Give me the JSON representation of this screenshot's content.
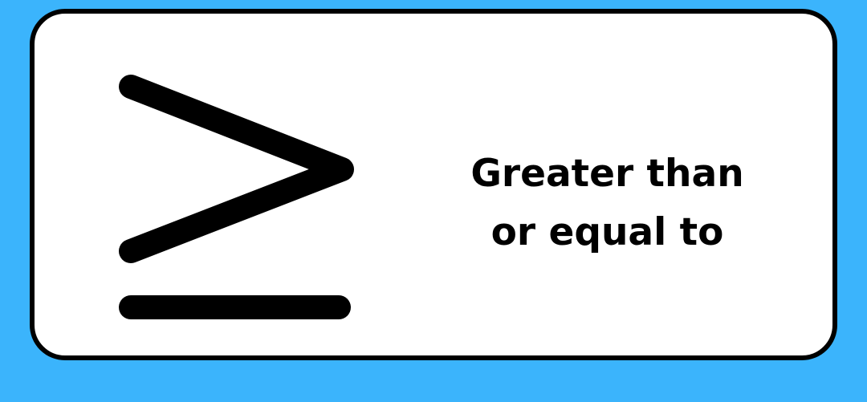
{
  "colors": {
    "background": "#3bb4fc",
    "card": "#ffffff",
    "ink": "#000000"
  },
  "symbol": {
    "icon": "greater-than-or-equal-icon"
  },
  "caption": {
    "line1": "Greater than",
    "line2": "or equal to"
  }
}
